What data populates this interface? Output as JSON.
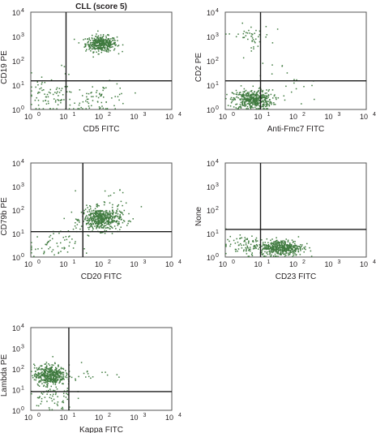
{
  "figure": {
    "title": "CLL (score 5)",
    "dot_color": "#3f7a3f",
    "gate_color": "#1a1a1a",
    "frame_color": "#555555"
  },
  "chart_data": [
    {
      "type": "scatter",
      "xlabel": "CD5 FITC",
      "ylabel": "CD19 PE",
      "xscale": "log",
      "yscale": "log",
      "xlim": [
        1,
        10000
      ],
      "ylim": [
        1,
        10000
      ],
      "x_tick_labels": [
        "10",
        "10",
        "10",
        "10",
        "10"
      ],
      "x_tick_exponents": [
        "0",
        "1",
        "2",
        "3",
        "4"
      ],
      "y_tick_labels": [
        "10",
        "10",
        "10",
        "10",
        "10"
      ],
      "y_tick_exponents": [
        "0",
        "1",
        "2",
        "3",
        "4"
      ],
      "gate": {
        "x": 10,
        "y": 15
      },
      "clusters": [
        {
          "cx": 100,
          "cy": 500,
          "sx": 0.22,
          "sy": 0.16,
          "n": 380
        },
        {
          "cx": 3,
          "cy": 3,
          "sx": 0.35,
          "sy": 0.3,
          "n": 60
        },
        {
          "cx": 100,
          "cy": 3,
          "sx": 0.4,
          "sy": 0.3,
          "n": 70
        },
        {
          "cx": 5,
          "cy": 5,
          "sx": 0.6,
          "sy": 0.7,
          "n": 25
        }
      ]
    },
    {
      "type": "scatter",
      "xlabel": "Anti-Fmc7 FITC",
      "ylabel": "CD2 PE",
      "xscale": "log",
      "yscale": "log",
      "xlim": [
        1,
        10000
      ],
      "ylim": [
        1,
        10000
      ],
      "x_tick_labels": [
        "10",
        "10",
        "10",
        "10",
        "10"
      ],
      "x_tick_exponents": [
        "0",
        "1",
        "2",
        "3",
        "4"
      ],
      "y_tick_labels": [
        "10",
        "10",
        "10",
        "10",
        "10"
      ],
      "y_tick_exponents": [
        "0",
        "1",
        "2",
        "3",
        "4"
      ],
      "gate": {
        "x": 10,
        "y": 15
      },
      "clusters": [
        {
          "cx": 6,
          "cy": 2.5,
          "sx": 0.28,
          "sy": 0.2,
          "n": 420
        },
        {
          "cx": 5,
          "cy": 1000,
          "sx": 0.3,
          "sy": 0.25,
          "n": 45
        },
        {
          "cx": 30,
          "cy": 10,
          "sx": 0.6,
          "sy": 0.5,
          "n": 30
        }
      ]
    },
    {
      "type": "scatter",
      "xlabel": "CD20 FITC",
      "ylabel": "CD79b PE",
      "xscale": "log",
      "yscale": "log",
      "xlim": [
        1,
        10000
      ],
      "ylim": [
        1,
        10000
      ],
      "x_tick_labels": [
        "10",
        "10",
        "10",
        "10",
        "10"
      ],
      "x_tick_exponents": [
        "0",
        "1",
        "2",
        "3",
        "4"
      ],
      "y_tick_labels": [
        "10",
        "10",
        "10",
        "10",
        "10"
      ],
      "y_tick_exponents": [
        "0",
        "1",
        "2",
        "3",
        "4"
      ],
      "gate": {
        "x": 30,
        "y": 12
      },
      "clusters": [
        {
          "cx": 100,
          "cy": 40,
          "sx": 0.28,
          "sy": 0.24,
          "n": 480
        },
        {
          "cx": 4,
          "cy": 3,
          "sx": 0.35,
          "sy": 0.3,
          "n": 60
        },
        {
          "cx": 200,
          "cy": 150,
          "sx": 0.4,
          "sy": 0.4,
          "n": 30
        }
      ]
    },
    {
      "type": "scatter",
      "xlabel": "CD23 FITC",
      "ylabel": "None",
      "xscale": "log",
      "yscale": "log",
      "xlim": [
        1,
        10000
      ],
      "ylim": [
        1,
        10000
      ],
      "x_tick_labels": [
        "10",
        "10",
        "10",
        "10",
        "10"
      ],
      "x_tick_exponents": [
        "0",
        "1",
        "2",
        "3",
        "4"
      ],
      "y_tick_labels": [
        "10",
        "10",
        "10",
        "10",
        "10"
      ],
      "y_tick_exponents": [
        "0",
        "1",
        "2",
        "3",
        "4"
      ],
      "gate": {
        "x": 10,
        "y": 15
      },
      "clusters": [
        {
          "cx": 40,
          "cy": 2.5,
          "sx": 0.3,
          "sy": 0.17,
          "n": 440
        },
        {
          "cx": 4,
          "cy": 3,
          "sx": 0.3,
          "sy": 0.2,
          "n": 90
        }
      ]
    },
    {
      "type": "scatter",
      "xlabel": "Kappa FITC",
      "ylabel": "Lambda PE",
      "xscale": "log",
      "yscale": "log",
      "xlim": [
        1,
        10000
      ],
      "ylim": [
        1,
        10000
      ],
      "x_tick_labels": [
        "10",
        "10",
        "10",
        "10",
        "10"
      ],
      "x_tick_exponents": [
        "0",
        "1",
        "2",
        "3",
        "4"
      ],
      "y_tick_labels": [
        "10",
        "10",
        "10",
        "10",
        "10"
      ],
      "y_tick_exponents": [
        "0",
        "1",
        "2",
        "3",
        "4"
      ],
      "gate": {
        "x": 12,
        "y": 8
      },
      "clusters": [
        {
          "cx": 3.5,
          "cy": 50,
          "sx": 0.22,
          "sy": 0.25,
          "n": 440
        },
        {
          "cx": 4,
          "cy": 4,
          "sx": 0.3,
          "sy": 0.35,
          "n": 60
        },
        {
          "cx": 40,
          "cy": 60,
          "sx": 0.35,
          "sy": 0.3,
          "n": 20
        }
      ]
    }
  ]
}
